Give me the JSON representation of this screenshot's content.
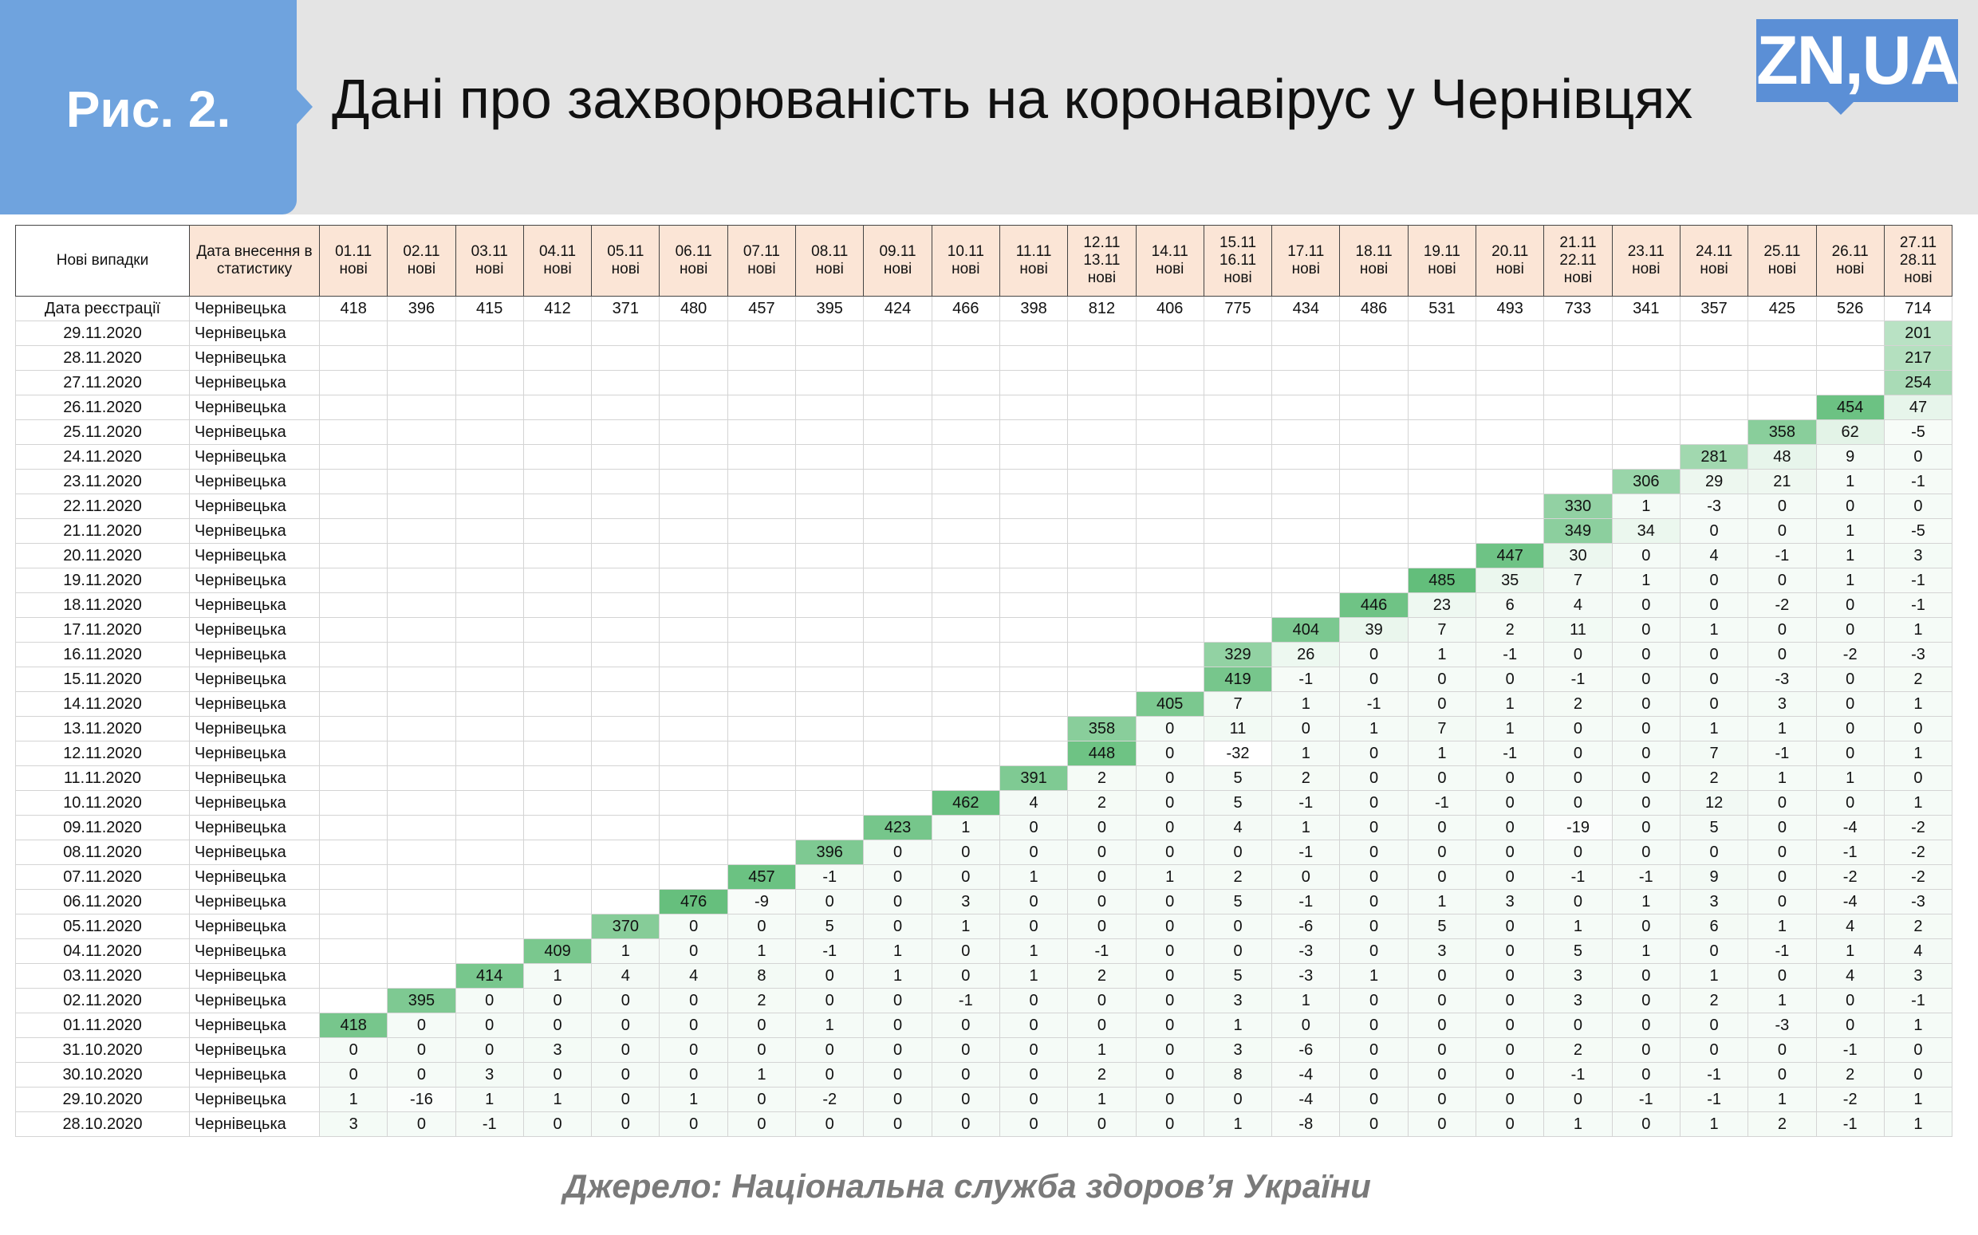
{
  "header": {
    "fig_label": "Рис. 2.",
    "title": "Дані про захворюваність на коронавірус у Чернівцях",
    "logo": "ZN,UA"
  },
  "table": {
    "corner": "Нові випадки",
    "stat_date_header": "Дата внесення в статистику",
    "columns": [
      [
        "01.11",
        "нові"
      ],
      [
        "02.11",
        "нові"
      ],
      [
        "03.11",
        "нові"
      ],
      [
        "04.11",
        "нові"
      ],
      [
        "05.11",
        "нові"
      ],
      [
        "06.11",
        "нові"
      ],
      [
        "07.11",
        "нові"
      ],
      [
        "08.11",
        "нові"
      ],
      [
        "09.11",
        "нові"
      ],
      [
        "10.11",
        "нові"
      ],
      [
        "11.11",
        "нові"
      ],
      [
        "12.11",
        "13.11",
        "нові"
      ],
      [
        "14.11",
        "нові"
      ],
      [
        "15.11",
        "16.11",
        "нові"
      ],
      [
        "17.11",
        "нові"
      ],
      [
        "18.11",
        "нові"
      ],
      [
        "19.11",
        "нові"
      ],
      [
        "20.11",
        "нові"
      ],
      [
        "21.11",
        "22.11",
        "нові"
      ],
      [
        "23.11",
        "нові"
      ],
      [
        "24.11",
        "нові"
      ],
      [
        "25.11",
        "нові"
      ],
      [
        "26.11",
        "нові"
      ],
      [
        "27.11",
        "28.11",
        "нові"
      ]
    ],
    "totals": {
      "label": "Дата реєстрації",
      "region": "Чернівецька",
      "values": [
        418,
        396,
        415,
        412,
        371,
        480,
        457,
        395,
        424,
        466,
        398,
        812,
        406,
        775,
        434,
        486,
        531,
        493,
        733,
        341,
        357,
        425,
        526,
        714
      ]
    },
    "rows": [
      {
        "date": "29.11.2020",
        "region": "Чернівецька",
        "values": [
          null,
          null,
          null,
          null,
          null,
          null,
          null,
          null,
          null,
          null,
          null,
          null,
          null,
          null,
          null,
          null,
          null,
          null,
          null,
          null,
          null,
          null,
          null,
          201
        ]
      },
      {
        "date": "28.11.2020",
        "region": "Чернівецька",
        "values": [
          null,
          null,
          null,
          null,
          null,
          null,
          null,
          null,
          null,
          null,
          null,
          null,
          null,
          null,
          null,
          null,
          null,
          null,
          null,
          null,
          null,
          null,
          null,
          217
        ]
      },
      {
        "date": "27.11.2020",
        "region": "Чернівецька",
        "values": [
          null,
          null,
          null,
          null,
          null,
          null,
          null,
          null,
          null,
          null,
          null,
          null,
          null,
          null,
          null,
          null,
          null,
          null,
          null,
          null,
          null,
          null,
          null,
          254
        ]
      },
      {
        "date": "26.11.2020",
        "region": "Чернівецька",
        "values": [
          null,
          null,
          null,
          null,
          null,
          null,
          null,
          null,
          null,
          null,
          null,
          null,
          null,
          null,
          null,
          null,
          null,
          null,
          null,
          null,
          null,
          null,
          454,
          47
        ]
      },
      {
        "date": "25.11.2020",
        "region": "Чернівецька",
        "values": [
          null,
          null,
          null,
          null,
          null,
          null,
          null,
          null,
          null,
          null,
          null,
          null,
          null,
          null,
          null,
          null,
          null,
          null,
          null,
          null,
          null,
          358,
          62,
          -5
        ]
      },
      {
        "date": "24.11.2020",
        "region": "Чернівецька",
        "values": [
          null,
          null,
          null,
          null,
          null,
          null,
          null,
          null,
          null,
          null,
          null,
          null,
          null,
          null,
          null,
          null,
          null,
          null,
          null,
          null,
          281,
          48,
          9,
          0
        ]
      },
      {
        "date": "23.11.2020",
        "region": "Чернівецька",
        "values": [
          null,
          null,
          null,
          null,
          null,
          null,
          null,
          null,
          null,
          null,
          null,
          null,
          null,
          null,
          null,
          null,
          null,
          null,
          null,
          306,
          29,
          21,
          1,
          -1
        ]
      },
      {
        "date": "22.11.2020",
        "region": "Чернівецька",
        "values": [
          null,
          null,
          null,
          null,
          null,
          null,
          null,
          null,
          null,
          null,
          null,
          null,
          null,
          null,
          null,
          null,
          null,
          null,
          330,
          1,
          -3,
          0,
          0,
          0
        ]
      },
      {
        "date": "21.11.2020",
        "region": "Чернівецька",
        "values": [
          null,
          null,
          null,
          null,
          null,
          null,
          null,
          null,
          null,
          null,
          null,
          null,
          null,
          null,
          null,
          null,
          null,
          null,
          349,
          34,
          0,
          0,
          1,
          -5
        ]
      },
      {
        "date": "20.11.2020",
        "region": "Чернівецька",
        "values": [
          null,
          null,
          null,
          null,
          null,
          null,
          null,
          null,
          null,
          null,
          null,
          null,
          null,
          null,
          null,
          null,
          null,
          447,
          30,
          0,
          4,
          -1,
          1,
          3
        ]
      },
      {
        "date": "19.11.2020",
        "region": "Чернівецька",
        "values": [
          null,
          null,
          null,
          null,
          null,
          null,
          null,
          null,
          null,
          null,
          null,
          null,
          null,
          null,
          null,
          null,
          485,
          35,
          7,
          1,
          0,
          0,
          1,
          -1
        ]
      },
      {
        "date": "18.11.2020",
        "region": "Чернівецька",
        "values": [
          null,
          null,
          null,
          null,
          null,
          null,
          null,
          null,
          null,
          null,
          null,
          null,
          null,
          null,
          null,
          446,
          23,
          6,
          4,
          0,
          0,
          -2,
          0,
          -1
        ]
      },
      {
        "date": "17.11.2020",
        "region": "Чернівецька",
        "values": [
          null,
          null,
          null,
          null,
          null,
          null,
          null,
          null,
          null,
          null,
          null,
          null,
          null,
          null,
          404,
          39,
          7,
          2,
          11,
          0,
          1,
          0,
          0,
          1
        ]
      },
      {
        "date": "16.11.2020",
        "region": "Чернівецька",
        "values": [
          null,
          null,
          null,
          null,
          null,
          null,
          null,
          null,
          null,
          null,
          null,
          null,
          null,
          329,
          26,
          0,
          1,
          -1,
          0,
          0,
          0,
          0,
          -2,
          -3
        ]
      },
      {
        "date": "15.11.2020",
        "region": "Чернівецька",
        "values": [
          null,
          null,
          null,
          null,
          null,
          null,
          null,
          null,
          null,
          null,
          null,
          null,
          null,
          419,
          -1,
          0,
          0,
          0,
          -1,
          0,
          0,
          -3,
          0,
          2
        ]
      },
      {
        "date": "14.11.2020",
        "region": "Чернівецька",
        "values": [
          null,
          null,
          null,
          null,
          null,
          null,
          null,
          null,
          null,
          null,
          null,
          null,
          405,
          7,
          1,
          -1,
          0,
          1,
          2,
          0,
          0,
          3,
          0,
          1
        ]
      },
      {
        "date": "13.11.2020",
        "region": "Чернівецька",
        "values": [
          null,
          null,
          null,
          null,
          null,
          null,
          null,
          null,
          null,
          null,
          null,
          358,
          0,
          11,
          0,
          1,
          7,
          1,
          0,
          0,
          1,
          1,
          0,
          0
        ]
      },
      {
        "date": "12.11.2020",
        "region": "Чернівецька",
        "values": [
          null,
          null,
          null,
          null,
          null,
          null,
          null,
          null,
          null,
          null,
          null,
          448,
          0,
          -32,
          1,
          0,
          1,
          -1,
          0,
          0,
          7,
          -1,
          0,
          1
        ]
      },
      {
        "date": "11.11.2020",
        "region": "Чернівецька",
        "values": [
          null,
          null,
          null,
          null,
          null,
          null,
          null,
          null,
          null,
          null,
          391,
          2,
          0,
          5,
          2,
          0,
          0,
          0,
          0,
          0,
          2,
          1,
          1,
          0
        ]
      },
      {
        "date": "10.11.2020",
        "region": "Чернівецька",
        "values": [
          null,
          null,
          null,
          null,
          null,
          null,
          null,
          null,
          null,
          462,
          4,
          2,
          0,
          5,
          -1,
          0,
          -1,
          0,
          0,
          0,
          12,
          0,
          0,
          1
        ]
      },
      {
        "date": "09.11.2020",
        "region": "Чернівецька",
        "values": [
          null,
          null,
          null,
          null,
          null,
          null,
          null,
          null,
          423,
          1,
          0,
          0,
          0,
          4,
          1,
          0,
          0,
          0,
          -19,
          0,
          5,
          0,
          -4,
          -2
        ]
      },
      {
        "date": "08.11.2020",
        "region": "Чернівецька",
        "values": [
          null,
          null,
          null,
          null,
          null,
          null,
          null,
          396,
          0,
          0,
          0,
          0,
          0,
          0,
          -1,
          0,
          0,
          0,
          0,
          0,
          0,
          0,
          -1,
          -2
        ]
      },
      {
        "date": "07.11.2020",
        "region": "Чернівецька",
        "values": [
          null,
          null,
          null,
          null,
          null,
          null,
          457,
          -1,
          0,
          0,
          1,
          0,
          1,
          2,
          0,
          0,
          0,
          0,
          -1,
          -1,
          9,
          0,
          -2,
          -2
        ]
      },
      {
        "date": "06.11.2020",
        "region": "Чернівецька",
        "values": [
          null,
          null,
          null,
          null,
          null,
          476,
          -9,
          0,
          0,
          3,
          0,
          0,
          0,
          5,
          -1,
          0,
          1,
          3,
          0,
          1,
          3,
          0,
          -4,
          -3
        ]
      },
      {
        "date": "05.11.2020",
        "region": "Чернівецька",
        "values": [
          null,
          null,
          null,
          null,
          370,
          0,
          0,
          5,
          0,
          1,
          0,
          0,
          0,
          0,
          -6,
          0,
          5,
          0,
          1,
          0,
          6,
          1,
          4,
          2
        ]
      },
      {
        "date": "04.11.2020",
        "region": "Чернівецька",
        "values": [
          null,
          null,
          null,
          409,
          1,
          0,
          1,
          -1,
          1,
          0,
          1,
          -1,
          0,
          0,
          -3,
          0,
          3,
          0,
          5,
          1,
          0,
          -1,
          1,
          4
        ]
      },
      {
        "date": "03.11.2020",
        "region": "Чернівецька",
        "values": [
          null,
          null,
          414,
          1,
          4,
          4,
          8,
          0,
          1,
          0,
          1,
          2,
          0,
          5,
          -3,
          1,
          0,
          0,
          3,
          0,
          1,
          0,
          4,
          3
        ]
      },
      {
        "date": "02.11.2020",
        "region": "Чернівецька",
        "values": [
          null,
          395,
          0,
          0,
          0,
          0,
          2,
          0,
          0,
          -1,
          0,
          0,
          0,
          3,
          1,
          0,
          0,
          0,
          3,
          0,
          2,
          1,
          0,
          -1
        ]
      },
      {
        "date": "01.11.2020",
        "region": "Чернівецька",
        "values": [
          418,
          0,
          0,
          0,
          0,
          0,
          0,
          1,
          0,
          0,
          0,
          0,
          0,
          1,
          0,
          0,
          0,
          0,
          0,
          0,
          0,
          -3,
          0,
          1
        ]
      },
      {
        "date": "31.10.2020",
        "region": "Чернівецька",
        "values": [
          0,
          0,
          0,
          3,
          0,
          0,
          0,
          0,
          0,
          0,
          0,
          1,
          0,
          3,
          -6,
          0,
          0,
          0,
          2,
          0,
          0,
          0,
          -1,
          0
        ]
      },
      {
        "date": "30.10.2020",
        "region": "Чернівецька",
        "values": [
          0,
          0,
          3,
          0,
          0,
          0,
          1,
          0,
          0,
          0,
          0,
          2,
          0,
          8,
          -4,
          0,
          0,
          0,
          -1,
          0,
          -1,
          0,
          2,
          0
        ]
      },
      {
        "date": "29.10.2020",
        "region": "Чернівецька",
        "values": [
          1,
          -16,
          1,
          1,
          0,
          1,
          0,
          -2,
          0,
          0,
          0,
          1,
          0,
          0,
          -4,
          0,
          0,
          0,
          0,
          -1,
          -1,
          1,
          -2,
          1
        ]
      },
      {
        "date": "28.10.2020",
        "region": "Чернівецька",
        "values": [
          3,
          0,
          -1,
          0,
          0,
          0,
          0,
          0,
          0,
          0,
          0,
          0,
          0,
          1,
          -8,
          0,
          0,
          0,
          1,
          0,
          1,
          2,
          -1,
          1
        ]
      }
    ]
  },
  "footer": {
    "source": "Джерело: Національна служба здоров’я України"
  }
}
